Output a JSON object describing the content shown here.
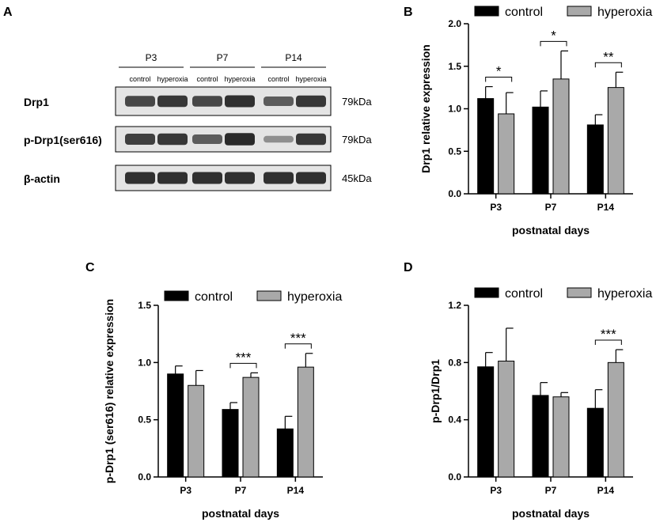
{
  "panel_labels": {
    "a": "A",
    "b": "B",
    "c": "C",
    "d": "D"
  },
  "blot": {
    "timepoints": [
      "P3",
      "P7",
      "P14"
    ],
    "lane_labels": [
      "control",
      "hyperoxia",
      "control",
      "hyperoxia",
      "control",
      "hyperoxia"
    ],
    "rows": [
      {
        "name": "Drp1",
        "size": "79kDa",
        "intensities": [
          0.75,
          0.85,
          0.75,
          0.9,
          0.6,
          0.85
        ]
      },
      {
        "name": "p-Drp1(ser616)",
        "size": "79kDa",
        "intensities": [
          0.8,
          0.85,
          0.6,
          0.95,
          0.25,
          0.85
        ]
      },
      {
        "name": "β-actin",
        "size": "45kDa",
        "intensities": [
          0.9,
          0.9,
          0.9,
          0.9,
          0.9,
          0.9
        ]
      }
    ]
  },
  "colors": {
    "control": "#000000",
    "hyperoxia": "#a9a9a9",
    "band": "#222222"
  },
  "chart_data": [
    {
      "id": "B",
      "type": "bar",
      "categories": [
        "P3",
        "P7",
        "P14"
      ],
      "series": [
        {
          "name": "control",
          "values": [
            1.12,
            1.02,
            0.81
          ],
          "errors": [
            0.14,
            0.19,
            0.12
          ]
        },
        {
          "name": "hyperoxia",
          "values": [
            0.94,
            1.35,
            1.25
          ],
          "errors": [
            0.25,
            0.33,
            0.18
          ]
        }
      ],
      "xlabel": "postnatal days",
      "ylabel": "Drp1 relative expression",
      "ylim": [
        0,
        2.0
      ],
      "yticks": [
        "0.0",
        "0.5",
        "1.0",
        "1.5",
        "2.0"
      ],
      "significance": [
        "*",
        "*",
        "**"
      ],
      "legend": "top"
    },
    {
      "id": "C",
      "type": "bar",
      "categories": [
        "P3",
        "P7",
        "P14"
      ],
      "series": [
        {
          "name": "control",
          "values": [
            0.9,
            0.59,
            0.42
          ],
          "errors": [
            0.07,
            0.06,
            0.11
          ]
        },
        {
          "name": "hyperoxia",
          "values": [
            0.8,
            0.87,
            0.96
          ],
          "errors": [
            0.13,
            0.04,
            0.12
          ]
        }
      ],
      "xlabel": "postnatal days",
      "ylabel": "p-Drp1 (ser616) relative expression",
      "ylim": [
        0,
        1.5
      ],
      "yticks": [
        "0.0",
        "0.5",
        "1.0",
        "1.5"
      ],
      "significance": [
        "",
        "***",
        "***"
      ],
      "legend": "top"
    },
    {
      "id": "D",
      "type": "bar",
      "categories": [
        "P3",
        "P7",
        "P14"
      ],
      "series": [
        {
          "name": "control",
          "values": [
            0.77,
            0.57,
            0.48
          ],
          "errors": [
            0.1,
            0.09,
            0.13
          ]
        },
        {
          "name": "hyperoxia",
          "values": [
            0.81,
            0.56,
            0.8
          ],
          "errors": [
            0.23,
            0.03,
            0.09
          ]
        }
      ],
      "xlabel": "postnatal days",
      "ylabel": "p-Drp1/Drp1",
      "ylim": [
        0,
        1.2
      ],
      "yticks": [
        "0.0",
        "0.4",
        "0.8",
        "1.2"
      ],
      "significance": [
        "",
        "",
        "***"
      ],
      "legend": "top"
    }
  ]
}
